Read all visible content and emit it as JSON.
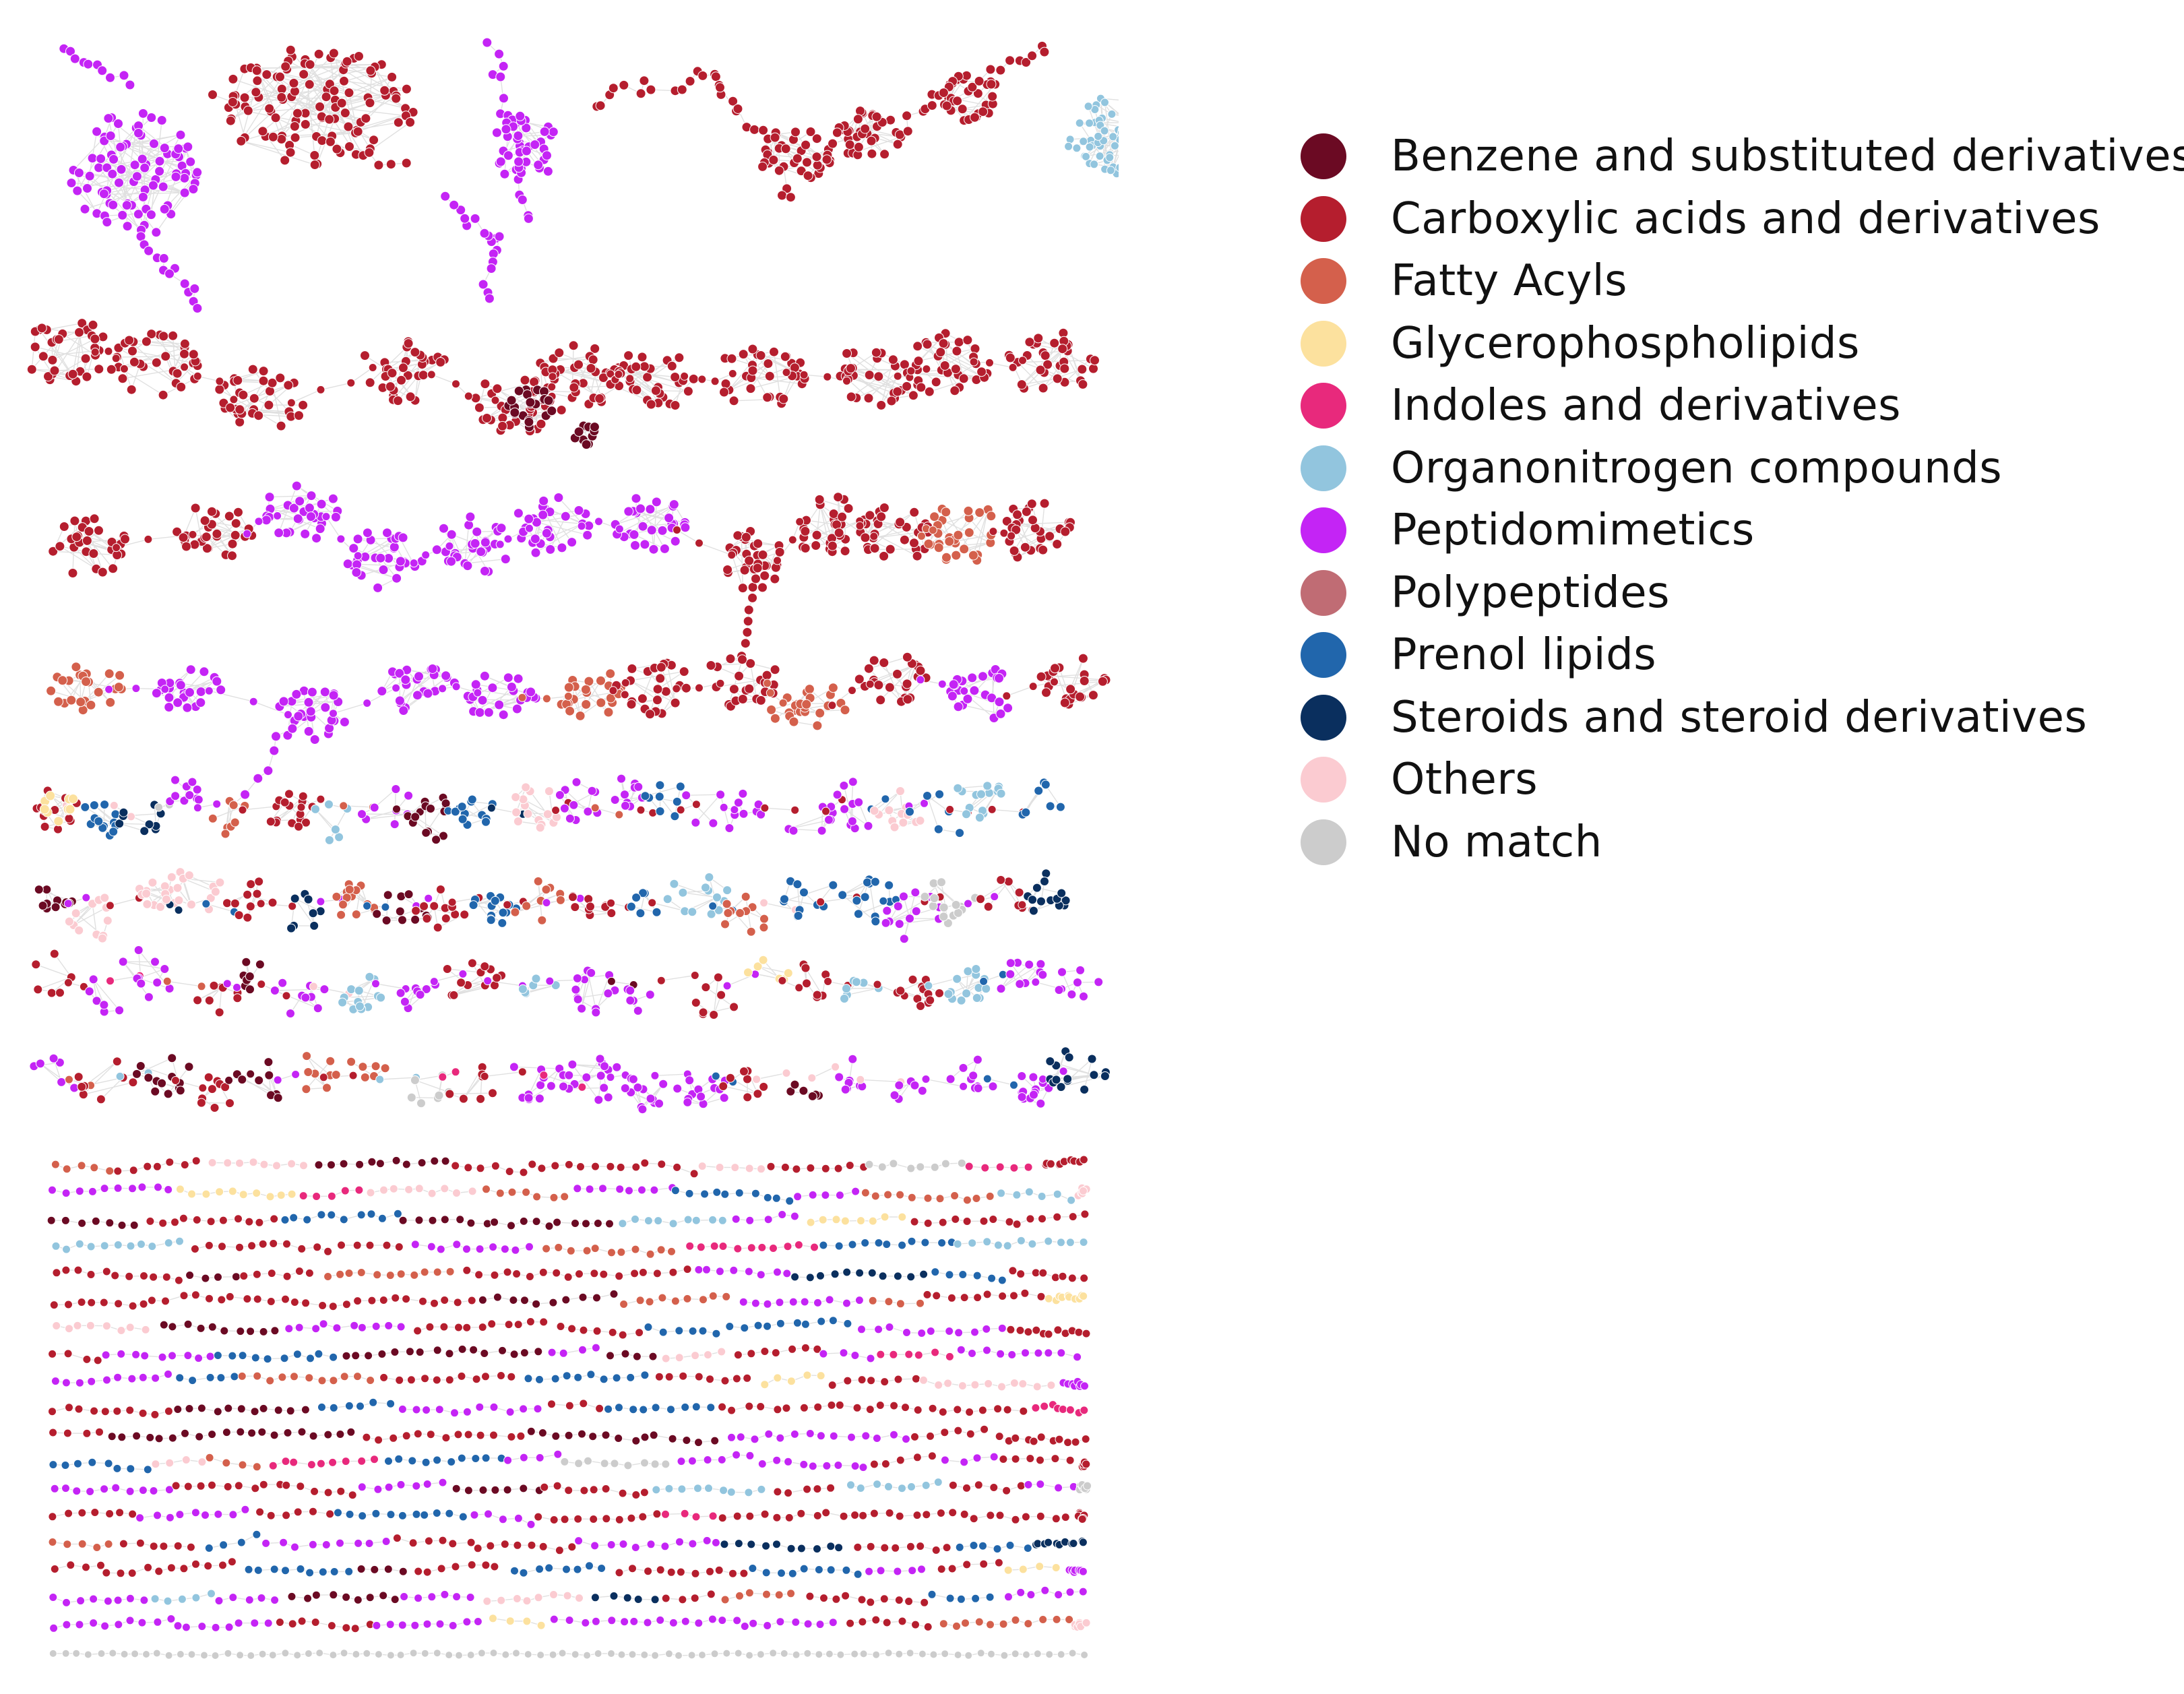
{
  "figure": {
    "title": "",
    "description_type": "molecular network clusters colored by chemical class"
  },
  "legend": {
    "items": [
      {
        "label": "Benzene and substituted derivatives",
        "color": "#6b0a23",
        "key": "benzene"
      },
      {
        "label": "Carboxylic acids and derivatives",
        "color": "#b51e2e",
        "key": "carboxylic"
      },
      {
        "label": "Fatty Acyls",
        "color": "#d4604c",
        "key": "fatty"
      },
      {
        "label": "Glycerophospholipids",
        "color": "#fce19e",
        "key": "glycero"
      },
      {
        "label": "Indoles and derivatives",
        "color": "#e8297c",
        "key": "indoles"
      },
      {
        "label": "Organonitrogen compounds",
        "color": "#92c5de",
        "key": "organon"
      },
      {
        "label": "Peptidomimetics",
        "color": "#c424f5",
        "key": "peptido"
      },
      {
        "label": "Polypeptides",
        "color": "#c06c74",
        "key": "polypep"
      },
      {
        "label": "Prenol lipids",
        "color": "#2166ac",
        "key": "prenol"
      },
      {
        "label": "Steroids and steroid derivatives",
        "color": "#0a2f5e",
        "key": "steroids"
      },
      {
        "label": "Others",
        "color": "#fbcbd1",
        "key": "others"
      },
      {
        "label": "No match",
        "color": "#cccccc",
        "key": "nomatch"
      }
    ]
  }
}
